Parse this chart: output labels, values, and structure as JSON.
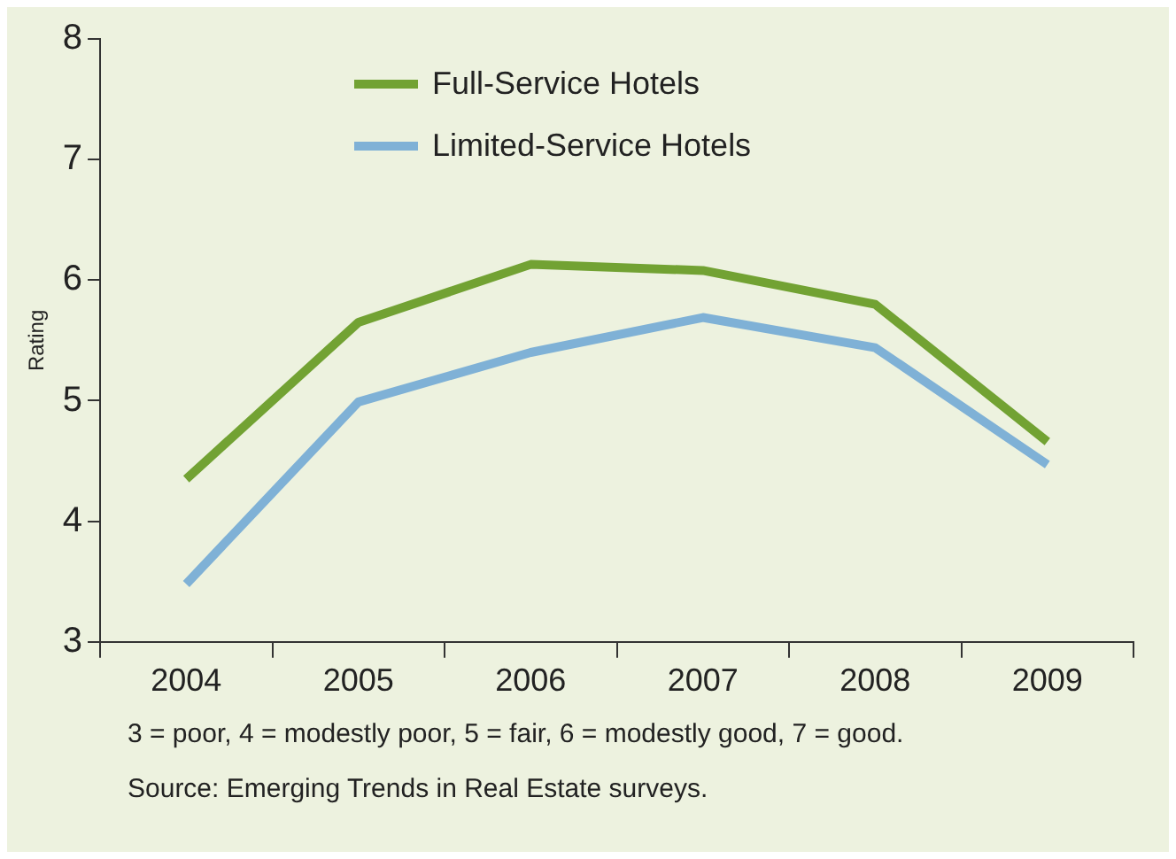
{
  "chart_data": {
    "type": "line",
    "ylabel": "Rating",
    "categories": [
      "2004",
      "2005",
      "2006",
      "2007",
      "2008",
      "2009"
    ],
    "series": [
      {
        "name": "Full-Service Hotels",
        "color": "#72a233",
        "values": [
          4.35,
          5.65,
          6.13,
          6.08,
          5.8,
          4.66
        ]
      },
      {
        "name": "Limited-Service Hotels",
        "color": "#7fb1d6",
        "values": [
          3.48,
          4.99,
          5.4,
          5.69,
          5.44,
          4.47
        ]
      }
    ],
    "ylim": [
      3,
      8
    ],
    "yticks": [
      3,
      4,
      5,
      6,
      7,
      8
    ],
    "grid": false,
    "legend": "top",
    "marker": "none",
    "line_style": "solid",
    "annotations": [
      "3 = poor, 4 = modestly poor, 5 = fair, 6 = modestly good, 7 = good.",
      "Source: Emerging Trends in Real Estate surveys."
    ]
  }
}
